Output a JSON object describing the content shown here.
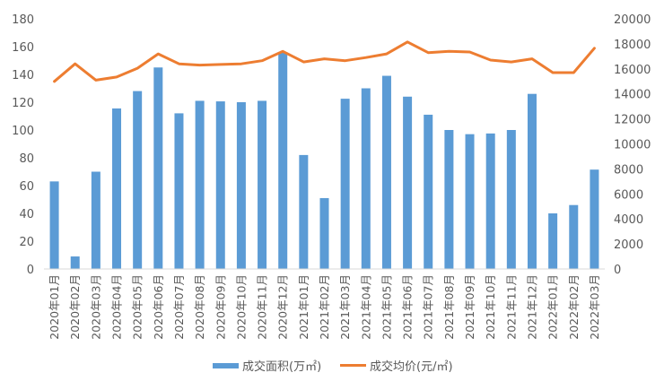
{
  "chart_data": {
    "type": "bar",
    "title": "",
    "categories": [
      "2020年01月",
      "2020年02月",
      "2020年03月",
      "2020年04月",
      "2020年05月",
      "2020年06月",
      "2020年07月",
      "2020年08月",
      "2020年09月",
      "2020年10月",
      "2020年11月",
      "2020年12月",
      "2021年01月",
      "2021年02月",
      "2021年03月",
      "2021年04月",
      "2021年05月",
      "2021年06月",
      "2021年07月",
      "2021年08月",
      "2021年09月",
      "2021年10月",
      "2021年11月",
      "2021年12月",
      "2022年01月",
      "2022年02月",
      "2022年03月"
    ],
    "series": [
      {
        "name": "成交面积(万㎡)",
        "type": "bar",
        "axis": "left",
        "color": "#5B9BD5",
        "values": [
          63,
          9,
          70,
          115.5,
          128,
          145,
          112,
          121,
          120.6,
          120,
          121,
          156,
          82,
          51,
          122.5,
          130,
          139,
          124,
          111,
          100,
          97,
          97.5,
          100,
          126,
          40,
          46,
          71.5
        ]
      },
      {
        "name": "成交均价(元/㎡)",
        "type": "line",
        "axis": "right",
        "color": "#ED7D31",
        "values": [
          15000,
          16400,
          15100,
          15350,
          16050,
          17200,
          16400,
          16300,
          16350,
          16400,
          16650,
          17400,
          16550,
          16800,
          16650,
          16900,
          17200,
          18150,
          17300,
          17400,
          17350,
          16700,
          16550,
          16800,
          15700,
          15700,
          17650
        ]
      }
    ],
    "y_left": {
      "range": [
        0,
        180
      ],
      "ticks": [
        "0",
        "20",
        "40",
        "60",
        "80",
        "100",
        "120",
        "140",
        "160",
        "180"
      ]
    },
    "y_right": {
      "range": [
        0,
        20000
      ],
      "ticks": [
        "0",
        "2000",
        "4000",
        "6000",
        "8000",
        "10000",
        "12000",
        "14000",
        "16000",
        "18000",
        "20000"
      ]
    },
    "grid": false,
    "legend": "bottom"
  }
}
